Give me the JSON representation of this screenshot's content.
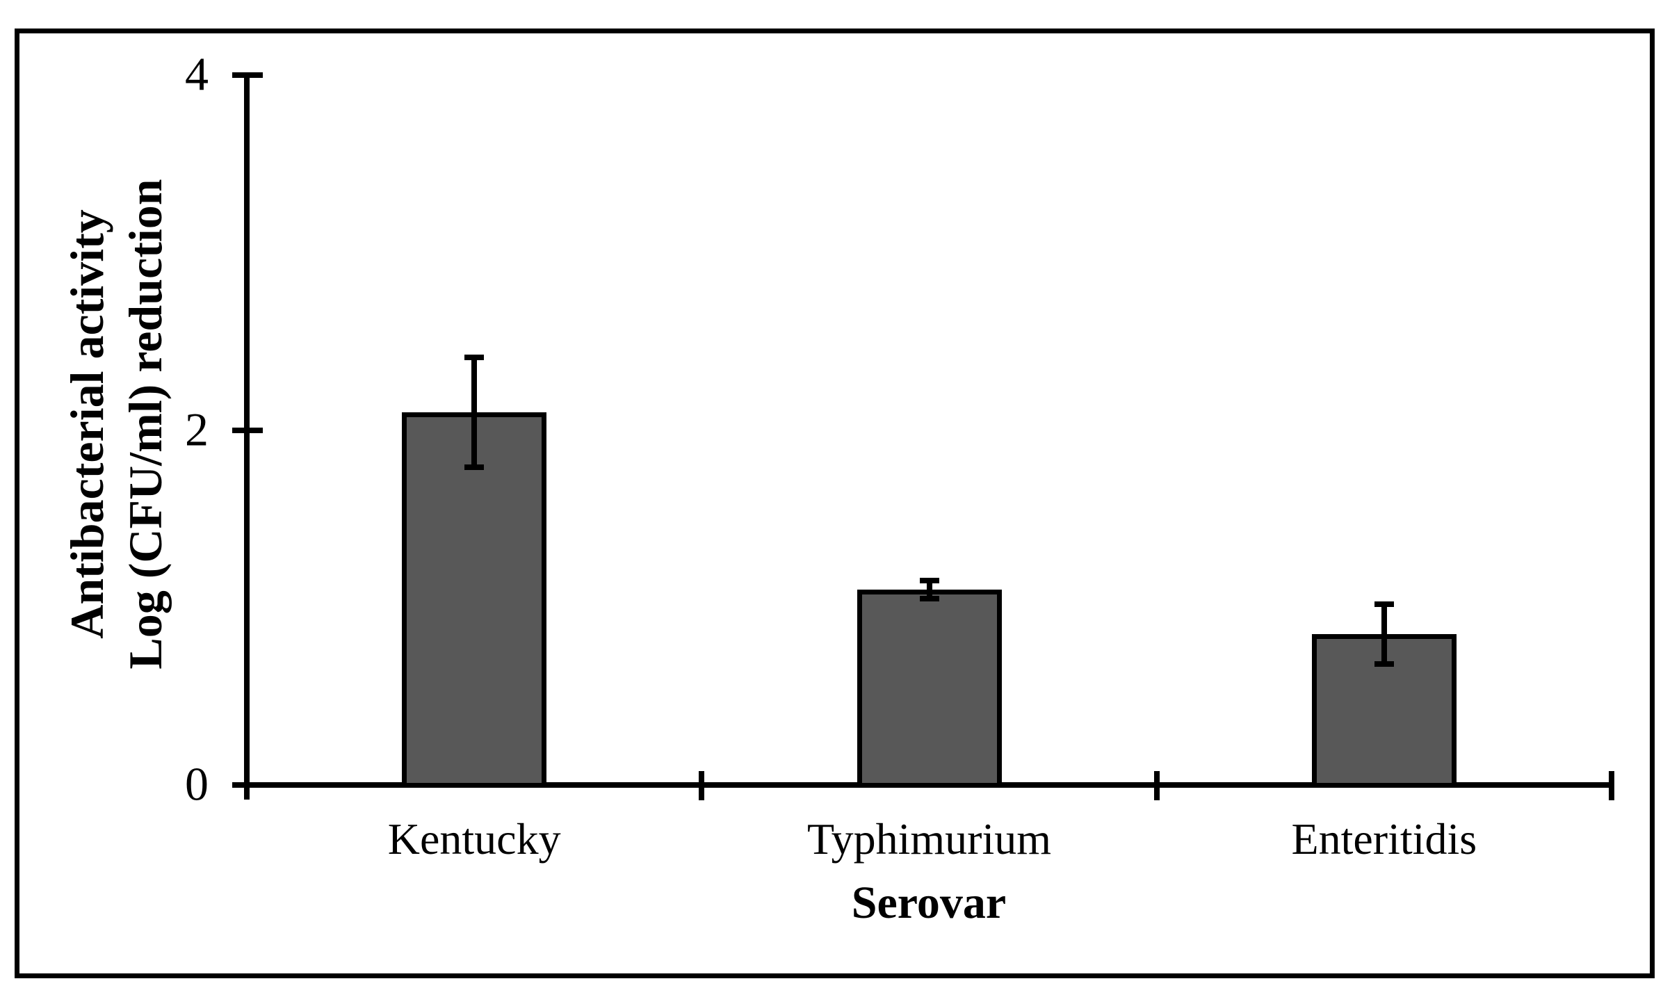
{
  "figure": {
    "kind": "static-bar-chart-figure",
    "background_color": "#ffffff",
    "frame_border_color": "#000000"
  },
  "chart_data": {
    "type": "bar",
    "title": "",
    "xlabel": "Serovar",
    "ylabel_lines": [
      "Antibacterial activity",
      "Log (CFU/ml) reduction"
    ],
    "categories": [
      "Kentucky",
      "Typhimurium",
      "Enteritidis"
    ],
    "values": [
      2.1,
      1.1,
      0.85
    ],
    "error_bars": [
      0.31,
      0.05,
      0.17
    ],
    "ylim": [
      0,
      4
    ],
    "yticks": [
      0,
      2,
      4
    ],
    "ytick_labels": [
      "0",
      "2",
      "4"
    ],
    "bar_color": "#585858",
    "bar_edge_color": "#000000",
    "axis_color": "#000000",
    "grid": false,
    "legend": null
  }
}
